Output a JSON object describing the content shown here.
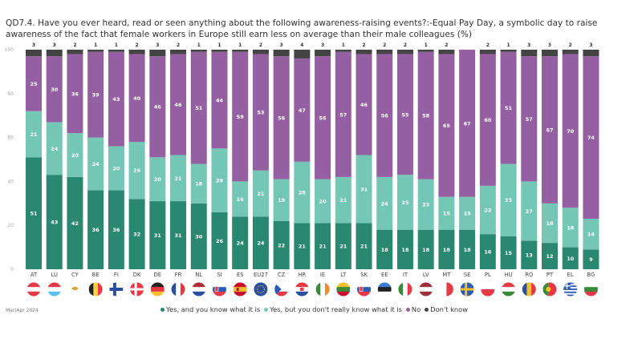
{
  "title": "QD7.4. Have you ever heard, read or seen anything about the following awareness-raising events?:-Equal Pay Day, a symbolic day to raise awareness of the fact that female workers in Europe still earn less on average than their male colleagues (%)",
  "source": "Mar/Apr 2024",
  "colors": {
    "yes_know": "#2a8770",
    "yes_not_know": "#74c6b5",
    "no": "#9560a2",
    "dont_know": "#444444"
  },
  "legend": [
    {
      "label": "Yes, and you know what it is",
      "color": "#2a8770"
    },
    {
      "label": "Yes, but you don't really know what it is",
      "color": "#74c6b5"
    },
    {
      "label": "No",
      "color": "#9560a2"
    },
    {
      "label": "Don't know",
      "color": "#444444"
    }
  ],
  "chart_data": {
    "type": "bar",
    "stacked": true,
    "title": "QD7.4. Have you ever heard, read or seen anything about the following awareness-raising events?:-Equal Pay Day, a symbolic day to raise awareness of the fact that female workers in Europe still earn less on average than their male colleagues (%)",
    "xlabel": "",
    "ylabel": "",
    "ylim": [
      0,
      100
    ],
    "yticks": [
      0,
      20,
      40,
      60,
      80,
      100
    ],
    "grid": false,
    "legend_position": "bottom",
    "categories": [
      "AT",
      "LU",
      "CY",
      "BE",
      "FI",
      "DK",
      "DE",
      "FR",
      "NL",
      "SI",
      "ES",
      "EU27",
      "CZ",
      "HR",
      "IE",
      "LT",
      "SK",
      "EE",
      "IT",
      "LV",
      "MT",
      "SE",
      "PL",
      "HU",
      "RO",
      "PT",
      "EL",
      "BG"
    ],
    "flags": [
      "austria",
      "luxembourg",
      "cyprus",
      "belgium",
      "finland",
      "denmark",
      "germany",
      "france",
      "netherlands",
      "slovenia",
      "spain",
      "european-union",
      "czechia",
      "croatia",
      "ireland",
      "lithuania",
      "slovakia",
      "estonia",
      "italy",
      "latvia",
      "malta",
      "sweden",
      "poland",
      "hungary",
      "romania",
      "portugal",
      "greece",
      "bulgaria"
    ],
    "series": [
      {
        "name": "Yes, and you know what it is",
        "values": [
          51,
          43,
          42,
          36,
          36,
          32,
          31,
          31,
          30,
          26,
          24,
          24,
          22,
          21,
          21,
          21,
          21,
          18,
          18,
          18,
          18,
          18,
          16,
          15,
          13,
          12,
          10,
          9
        ]
      },
      {
        "name": "Yes, but you don't really know what it is",
        "values": [
          21,
          24,
          20,
          24,
          20,
          26,
          20,
          21,
          18,
          29,
          16,
          21,
          19,
          28,
          20,
          21,
          31,
          24,
          25,
          23,
          15,
          15,
          22,
          33,
          27,
          18,
          18,
          14
        ]
      },
      {
        "name": "No",
        "values": [
          25,
          30,
          36,
          39,
          43,
          40,
          46,
          46,
          51,
          44,
          59,
          53,
          56,
          47,
          56,
          57,
          46,
          56,
          55,
          58,
          65,
          67,
          60,
          51,
          57,
          67,
          70,
          74
        ]
      },
      {
        "name": "Don't know",
        "values": [
          3,
          3,
          2,
          1,
          1,
          2,
          3,
          2,
          1,
          1,
          1,
          2,
          3,
          4,
          3,
          1,
          2,
          2,
          2,
          1,
          2,
          0,
          2,
          1,
          3,
          3,
          2,
          3
        ]
      }
    ]
  }
}
